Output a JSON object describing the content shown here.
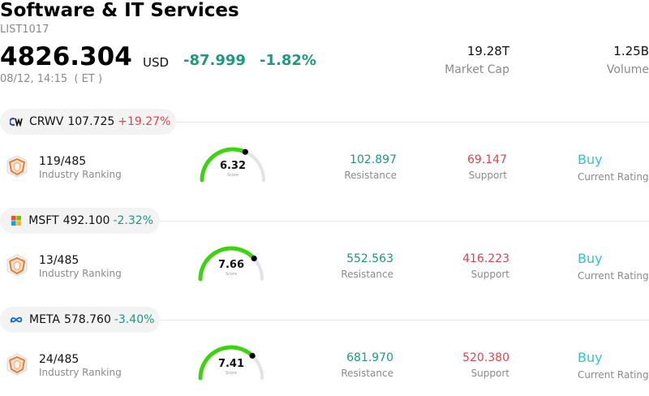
{
  "header": {
    "title": "Software & IT Services",
    "code": "LIST1017",
    "price": "4826.304",
    "currency": "USD",
    "change": "-87.999",
    "change_pct": "-1.82%",
    "time": "08/12, 14:15  ( ET )",
    "market_cap_value": "19.28T",
    "market_cap_label": "Market Cap",
    "volume_value": "1.25B",
    "volume_label": "Volume"
  },
  "colors": {
    "up": "#e8414b",
    "down": "#1a9a7e",
    "rating": "#33c4c4",
    "gauge_fill": "#3dd40f",
    "gauge_track": "#e2e2ea"
  },
  "stocks": [
    {
      "logo": "crwv-logo-icon",
      "symbol": "CRWV",
      "price": "107.725",
      "change_pct": "+19.27%",
      "rank": "119/485",
      "rank_label": "Industry Ranking",
      "score": "6.32",
      "score_value": 6.32,
      "score_label": "Score",
      "resistance": "102.897",
      "resistance_label": "Resistance",
      "support": "69.147",
      "support_label": "Support",
      "rating": "Buy",
      "rating_label": "Current Rating"
    },
    {
      "logo": "microsoft-logo-icon",
      "symbol": "MSFT",
      "price": "492.100",
      "change_pct": "-2.32%",
      "rank": "13/485",
      "rank_label": "Industry Ranking",
      "score": "7.66",
      "score_value": 7.66,
      "score_label": "Score",
      "resistance": "552.563",
      "resistance_label": "Resistance",
      "support": "416.223",
      "support_label": "Support",
      "rating": "Buy",
      "rating_label": "Current Rating"
    },
    {
      "logo": "meta-logo-icon",
      "symbol": "META",
      "price": "578.760",
      "change_pct": "-3.40%",
      "rank": "24/485",
      "rank_label": "Industry Ranking",
      "score": "7.41",
      "score_value": 7.41,
      "score_label": "Score",
      "resistance": "681.970",
      "resistance_label": "Resistance",
      "support": "520.380",
      "support_label": "Support",
      "rating": "Buy",
      "rating_label": "Current Rating"
    }
  ]
}
